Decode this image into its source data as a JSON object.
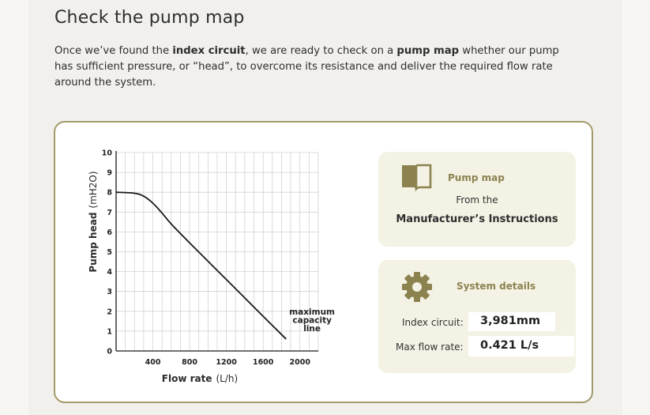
{
  "page": {
    "heading": "Check the pump map",
    "intro": {
      "p1": "Once we’ve found the ",
      "b1": "index circuit",
      "p2": ", we are ready to check on a ",
      "b2": "pump map",
      "p3": " whether our pump has sufficient pressure, or “head”, to overcome its resistance and deliver the required flow rate around the system."
    }
  },
  "pump_map_panel": {
    "icon": "book-icon",
    "title": "Pump map",
    "subtitle": "From the",
    "source": "Manufacturer’s Instructions"
  },
  "system_panel": {
    "icon": "gear-icon",
    "title": "System details",
    "index_circuit_label": "Index circuit:",
    "index_circuit_value": "3,981mm",
    "max_flow_label": "Max flow rate:",
    "max_flow_value": "0.421 L/s"
  },
  "colors": {
    "accent": "#a39a6a",
    "panel": "#f3f2e4",
    "accent_text": "#8c8250"
  },
  "chart_data": {
    "type": "line",
    "xlabel_bold": "Flow rate",
    "xlabel_unit": "(L/h)",
    "ylabel_bold": "Pump head",
    "ylabel_unit": "(mH2O)",
    "xlim": [
      0,
      2200
    ],
    "ylim": [
      0,
      10
    ],
    "x_ticks": [
      400,
      800,
      1200,
      1600,
      2000
    ],
    "y_ticks": [
      0,
      1,
      2,
      3,
      4,
      5,
      6,
      7,
      8,
      9,
      10
    ],
    "grid": true,
    "series": [
      {
        "x": [
          0,
          200,
          300,
          400,
          500,
          600,
          800,
          1200,
          1600,
          1850
        ],
        "y": [
          8,
          7.95,
          7.8,
          7.45,
          6.95,
          6.4,
          5.45,
          3.6,
          1.75,
          0.6
        ]
      }
    ],
    "annotation": [
      "maximum",
      "capacity",
      "line"
    ]
  }
}
